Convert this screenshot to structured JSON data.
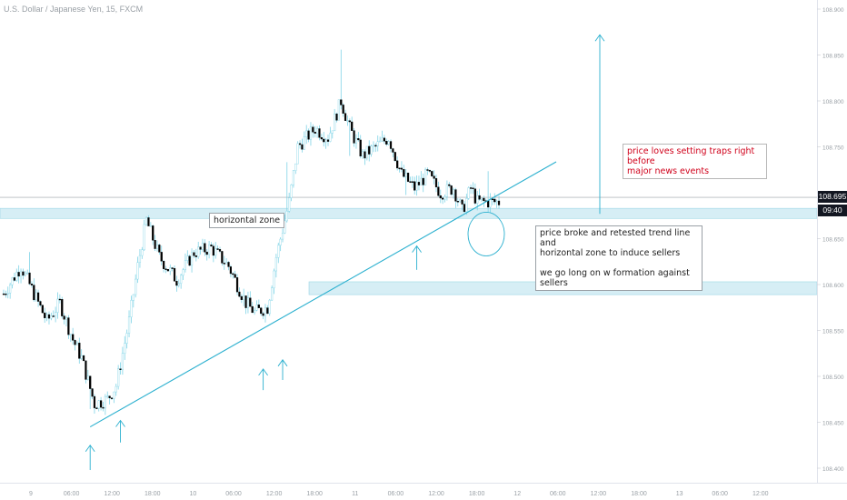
{
  "symbol_title": "U.S. Dollar / Japanese Yen, 15, FXCM",
  "current_price": "108.695",
  "countdown": "09:40",
  "annotations": {
    "horizontal_zone": "horizontal zone",
    "broke_retest": "price broke and retested trend line and\nhorizontal zone to induce sellers\n\nwe go long on w formation against sellers",
    "traps": "price loves setting traps right before\nmajor news events"
  },
  "colors": {
    "bull": "#ffffff",
    "bear": "#000000",
    "wick": "#7fd3e6",
    "zone": "#d6eef5",
    "trend": "#2bb0cf",
    "label_red": "#d0021b"
  },
  "chart_data": {
    "type": "candlestick",
    "title": "U.S. Dollar / Japanese Yen, 15, FXCM",
    "y_ticks": [
      "108.400",
      "108.450",
      "108.500",
      "108.550",
      "108.600",
      "108.650",
      "108.700",
      "108.750",
      "108.800",
      "108.850",
      "108.900"
    ],
    "x_ticks": [
      "9",
      "06:00",
      "12:00",
      "18:00",
      "10",
      "06:00",
      "12:00",
      "18:00",
      "11",
      "06:00",
      "12:00",
      "18:00",
      "12",
      "06:00",
      "12:00",
      "18:00",
      "13",
      "06:00",
      "12:00"
    ],
    "ylim": [
      108.385,
      108.905
    ],
    "n_bars": 230,
    "close_path": [
      [
        0,
        108.59
      ],
      [
        8,
        108.62
      ],
      [
        12,
        108.6
      ],
      [
        20,
        108.56
      ],
      [
        26,
        108.58
      ],
      [
        32,
        108.54
      ],
      [
        36,
        108.52
      ],
      [
        42,
        108.47
      ],
      [
        48,
        108.475
      ],
      [
        52,
        108.49
      ],
      [
        58,
        108.56
      ],
      [
        62,
        108.62
      ],
      [
        66,
        108.67
      ],
      [
        72,
        108.63
      ],
      [
        80,
        108.605
      ],
      [
        88,
        108.635
      ],
      [
        96,
        108.64
      ],
      [
        104,
        108.62
      ],
      [
        112,
        108.58
      ],
      [
        116,
        108.57
      ],
      [
        122,
        108.575
      ],
      [
        126,
        108.63
      ],
      [
        132,
        108.69
      ],
      [
        136,
        108.75
      ],
      [
        144,
        108.77
      ],
      [
        150,
        108.76
      ],
      [
        156,
        108.8
      ],
      [
        160,
        108.77
      ],
      [
        166,
        108.74
      ],
      [
        172,
        108.75
      ],
      [
        178,
        108.76
      ],
      [
        184,
        108.72
      ],
      [
        190,
        108.705
      ],
      [
        196,
        108.72
      ],
      [
        202,
        108.7
      ],
      [
        208,
        108.705
      ],
      [
        212,
        108.68
      ],
      [
        216,
        108.705
      ],
      [
        219,
        108.69
      ]
    ],
    "zones": [
      {
        "from": 108.672,
        "to": 108.683
      },
      {
        "from": 108.589,
        "to": 108.603
      }
    ],
    "trendline": {
      "start": [
        40,
        108.445
      ],
      "end": [
        229,
        108.738
      ]
    },
    "up_arrows": [
      {
        "bar": 40,
        "from": 108.398,
        "to": 108.425
      },
      {
        "bar": 54,
        "from": 108.428,
        "to": 108.452
      },
      {
        "bar": 120,
        "from": 108.485,
        "to": 108.508
      },
      {
        "bar": 129,
        "from": 108.496,
        "to": 108.518
      },
      {
        "bar": 191,
        "from": 108.616,
        "to": 108.642
      },
      {
        "bar": 258,
        "from": 108.677,
        "to": 108.872
      }
    ],
    "circle": {
      "bar": 210,
      "price": 108.655
    },
    "annotations": [
      "horizontal zone",
      "price broke and retested trend line and horizontal zone to induce sellers",
      "we go long on w formation against sellers",
      "price loves setting traps right before major news events"
    ],
    "grid": false,
    "last_price": 108.695
  }
}
